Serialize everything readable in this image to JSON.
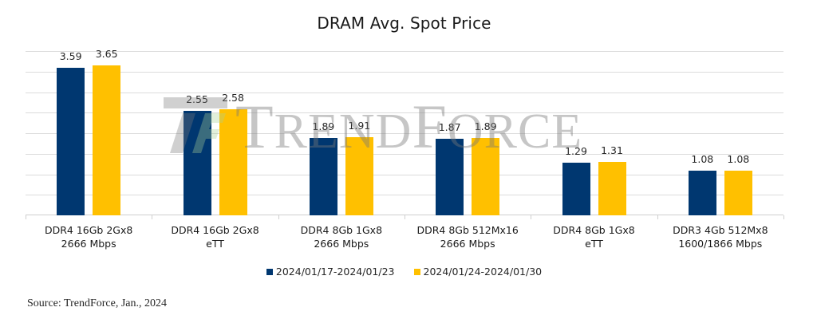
{
  "chart_data": {
    "type": "bar",
    "title": "DRAM Avg. Spot Price",
    "xlabel": "",
    "ylabel": "",
    "ylim": [
      0,
      4.0
    ],
    "y_gridline_step": 0.5,
    "grid": true,
    "y_axis_labels_visible": false,
    "legend_position": "bottom",
    "categories": [
      "DDR4 16Gb 2Gx8 2666 Mbps",
      "DDR4 16Gb 2Gx8 eTT",
      "DDR4 8Gb 1Gx8 2666 Mbps",
      "DDR4 8Gb 512Mx16 2666 Mbps",
      "DDR4 8Gb 1Gx8 eTT",
      "DDR3 4Gb 512Mx8 1600/1866 Mbps"
    ],
    "series": [
      {
        "name": "2024/01/17-2024/01/23",
        "color": "#003770",
        "values": [
          3.59,
          2.55,
          1.89,
          1.87,
          1.29,
          1.08
        ]
      },
      {
        "name": "2024/01/24-2024/01/30",
        "color": "#ffc000",
        "values": [
          3.65,
          2.58,
          1.91,
          1.89,
          1.31,
          1.08
        ]
      }
    ],
    "annotations": [
      "Source: TrendForce, Jan., 2024",
      "TRENDFORCE watermark"
    ]
  },
  "title": "DRAM Avg. Spot Price",
  "categories": [
    {
      "line1": "DDR4 16Gb 2Gx8",
      "line2": "2666 Mbps"
    },
    {
      "line1": "DDR4 16Gb 2Gx8",
      "line2": "eTT"
    },
    {
      "line1": "DDR4 8Gb 1Gx8",
      "line2": "2666 Mbps"
    },
    {
      "line1": "DDR4 8Gb 512Mx16",
      "line2": "2666 Mbps"
    },
    {
      "line1": "DDR4 8Gb 1Gx8",
      "line2": "eTT"
    },
    {
      "line1": "DDR3 4Gb 512Mx8",
      "line2": "1600/1866 Mbps"
    }
  ],
  "legend": [
    {
      "label": "2024/01/17-2024/01/23",
      "color": "#003770"
    },
    {
      "label": "2024/01/24-2024/01/30",
      "color": "#ffc000"
    }
  ],
  "source": "Source: TrendForce, Jan., 2024",
  "watermark": {
    "big1": "T",
    "small1": "REND",
    "big2": "F",
    "small2": "ORCE"
  }
}
